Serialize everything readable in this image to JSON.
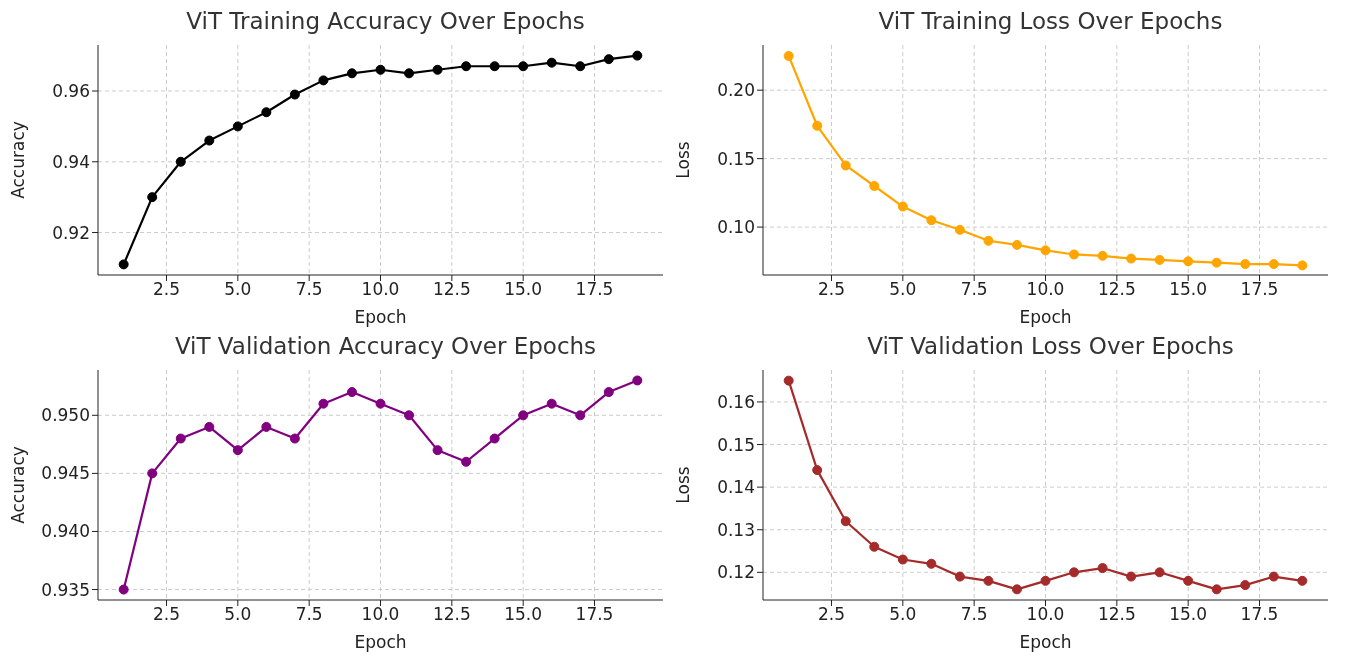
{
  "chart_data": [
    {
      "type": "line",
      "title": "ViT Training Accuracy Over Epochs",
      "xlabel": "Epoch",
      "ylabel": "Accuracy",
      "x": [
        1,
        2,
        3,
        4,
        5,
        6,
        7,
        8,
        9,
        10,
        11,
        12,
        13,
        14,
        15,
        16,
        17,
        18,
        19
      ],
      "series": [
        {
          "color": "#000000",
          "values": [
            0.911,
            0.93,
            0.94,
            0.946,
            0.95,
            0.954,
            0.959,
            0.963,
            0.965,
            0.966,
            0.965,
            0.966,
            0.967,
            0.967,
            0.967,
            0.968,
            0.967,
            0.969,
            0.97
          ]
        }
      ],
      "xlim": [
        0.1,
        19.9
      ],
      "xticks": [
        {
          "value": 2.5,
          "label": "2.5"
        },
        {
          "value": 5,
          "label": "5.0"
        },
        {
          "value": 7.5,
          "label": "7.5"
        },
        {
          "value": 10,
          "label": "10.0"
        },
        {
          "value": 12.5,
          "label": "12.5"
        },
        {
          "value": 15,
          "label": "15.0"
        },
        {
          "value": 17.5,
          "label": "17.5"
        }
      ],
      "ylim": [
        0.908,
        0.973
      ],
      "yticks": [
        {
          "value": 0.92,
          "label": "0.92"
        },
        {
          "value": 0.94,
          "label": "0.94"
        },
        {
          "value": 0.96,
          "label": "0.96"
        }
      ],
      "grid": true,
      "marker": "circle",
      "line_style": "solid"
    },
    {
      "type": "line",
      "title": "ViT Training Loss Over Epochs",
      "xlabel": "Epoch",
      "ylabel": "Loss",
      "x": [
        1,
        2,
        3,
        4,
        5,
        6,
        7,
        8,
        9,
        10,
        11,
        12,
        13,
        14,
        15,
        16,
        17,
        18,
        19
      ],
      "series": [
        {
          "color": "#ffa500",
          "values": [
            0.225,
            0.174,
            0.145,
            0.13,
            0.115,
            0.105,
            0.098,
            0.09,
            0.087,
            0.083,
            0.08,
            0.079,
            0.077,
            0.076,
            0.075,
            0.074,
            0.073,
            0.073,
            0.072
          ]
        }
      ],
      "xlim": [
        0.1,
        19.9
      ],
      "xticks": [
        {
          "value": 2.5,
          "label": "2.5"
        },
        {
          "value": 5,
          "label": "5.0"
        },
        {
          "value": 7.5,
          "label": "7.5"
        },
        {
          "value": 10,
          "label": "10.0"
        },
        {
          "value": 12.5,
          "label": "12.5"
        },
        {
          "value": 15,
          "label": "15.0"
        },
        {
          "value": 17.5,
          "label": "17.5"
        }
      ],
      "ylim": [
        0.065,
        0.233
      ],
      "yticks": [
        {
          "value": 0.1,
          "label": "0.10"
        },
        {
          "value": 0.15,
          "label": "0.15"
        },
        {
          "value": 0.2,
          "label": "0.20"
        }
      ],
      "grid": true,
      "marker": "circle",
      "line_style": "solid"
    },
    {
      "type": "line",
      "title": "ViT Validation Accuracy Over Epochs",
      "xlabel": "Epoch",
      "ylabel": "Accuracy",
      "x": [
        1,
        2,
        3,
        4,
        5,
        6,
        7,
        8,
        9,
        10,
        11,
        12,
        13,
        14,
        15,
        16,
        17,
        18,
        19
      ],
      "series": [
        {
          "color": "#800080",
          "values": [
            0.935,
            0.945,
            0.948,
            0.949,
            0.947,
            0.949,
            0.948,
            0.951,
            0.952,
            0.951,
            0.95,
            0.947,
            0.946,
            0.948,
            0.95,
            0.951,
            0.95,
            0.952,
            0.953
          ]
        }
      ],
      "xlim": [
        0.1,
        19.9
      ],
      "xticks": [
        {
          "value": 2.5,
          "label": "2.5"
        },
        {
          "value": 5,
          "label": "5.0"
        },
        {
          "value": 7.5,
          "label": "7.5"
        },
        {
          "value": 10,
          "label": "10.0"
        },
        {
          "value": 12.5,
          "label": "12.5"
        },
        {
          "value": 15,
          "label": "15.0"
        },
        {
          "value": 17.5,
          "label": "17.5"
        }
      ],
      "ylim": [
        0.9341,
        0.9539
      ],
      "yticks": [
        {
          "value": 0.935,
          "label": "0.935"
        },
        {
          "value": 0.94,
          "label": "0.940"
        },
        {
          "value": 0.945,
          "label": "0.945"
        },
        {
          "value": 0.95,
          "label": "0.950"
        }
      ],
      "grid": true,
      "marker": "circle",
      "line_style": "solid"
    },
    {
      "type": "line",
      "title": "ViT Validation Loss Over Epochs",
      "xlabel": "Epoch",
      "ylabel": "Loss",
      "x": [
        1,
        2,
        3,
        4,
        5,
        6,
        7,
        8,
        9,
        10,
        11,
        12,
        13,
        14,
        15,
        16,
        17,
        18,
        19
      ],
      "series": [
        {
          "color": "#a52a2a",
          "values": [
            0.165,
            0.144,
            0.132,
            0.126,
            0.123,
            0.122,
            0.119,
            0.118,
            0.116,
            0.118,
            0.12,
            0.121,
            0.119,
            0.12,
            0.118,
            0.116,
            0.117,
            0.119,
            0.118
          ]
        }
      ],
      "xlim": [
        0.1,
        19.9
      ],
      "xticks": [
        {
          "value": 2.5,
          "label": "2.5"
        },
        {
          "value": 5,
          "label": "5.0"
        },
        {
          "value": 7.5,
          "label": "7.5"
        },
        {
          "value": 10,
          "label": "10.0"
        },
        {
          "value": 12.5,
          "label": "12.5"
        },
        {
          "value": 15,
          "label": "15.0"
        },
        {
          "value": 17.5,
          "label": "17.5"
        }
      ],
      "ylim": [
        0.1135,
        0.1675
      ],
      "yticks": [
        {
          "value": 0.12,
          "label": "0.12"
        },
        {
          "value": 0.13,
          "label": "0.13"
        },
        {
          "value": 0.14,
          "label": "0.14"
        },
        {
          "value": 0.15,
          "label": "0.15"
        },
        {
          "value": 0.16,
          "label": "0.16"
        }
      ],
      "grid": true,
      "marker": "circle",
      "line_style": "solid"
    }
  ]
}
